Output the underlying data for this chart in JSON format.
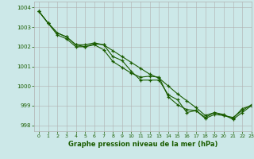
{
  "title": "Graphe pression niveau de la mer (hPa)",
  "bg_color": "#cce8e8",
  "grid_color": "#b0b0b0",
  "line_color": "#1a5c00",
  "marker_color": "#1a5c00",
  "xlim": [
    -0.5,
    23
  ],
  "ylim": [
    997.7,
    1004.3
  ],
  "yticks": [
    998,
    999,
    1000,
    1001,
    1002,
    1003,
    1004
  ],
  "xticks": [
    0,
    1,
    2,
    3,
    4,
    5,
    6,
    7,
    8,
    9,
    10,
    11,
    12,
    13,
    14,
    15,
    16,
    17,
    18,
    19,
    20,
    21,
    22,
    23
  ],
  "series": {
    "line1": [
      1003.8,
      1003.2,
      1002.6,
      1002.4,
      1002.0,
      1002.0,
      1002.15,
      1002.1,
      1001.5,
      1001.3,
      1000.75,
      1000.3,
      1000.3,
      1000.3,
      999.55,
      999.3,
      998.65,
      998.75,
      998.35,
      998.55,
      998.5,
      998.35,
      998.85,
      999.0
    ],
    "line2": [
      1003.8,
      1003.2,
      1002.7,
      1002.5,
      1002.1,
      1002.0,
      1002.1,
      1001.85,
      1001.25,
      1000.95,
      1000.65,
      1000.45,
      1000.5,
      1000.45,
      999.45,
      999.05,
      998.8,
      998.75,
      998.4,
      998.65,
      998.55,
      998.3,
      998.65,
      999.0
    ],
    "line3": [
      1003.8,
      1003.2,
      1002.7,
      1002.5,
      1002.1,
      1002.1,
      1002.2,
      1002.1,
      1001.8,
      1001.5,
      1001.2,
      1000.9,
      1000.6,
      1000.4,
      1000.0,
      999.6,
      999.25,
      998.9,
      998.5,
      998.65,
      998.5,
      998.4,
      998.75,
      999.05
    ]
  }
}
